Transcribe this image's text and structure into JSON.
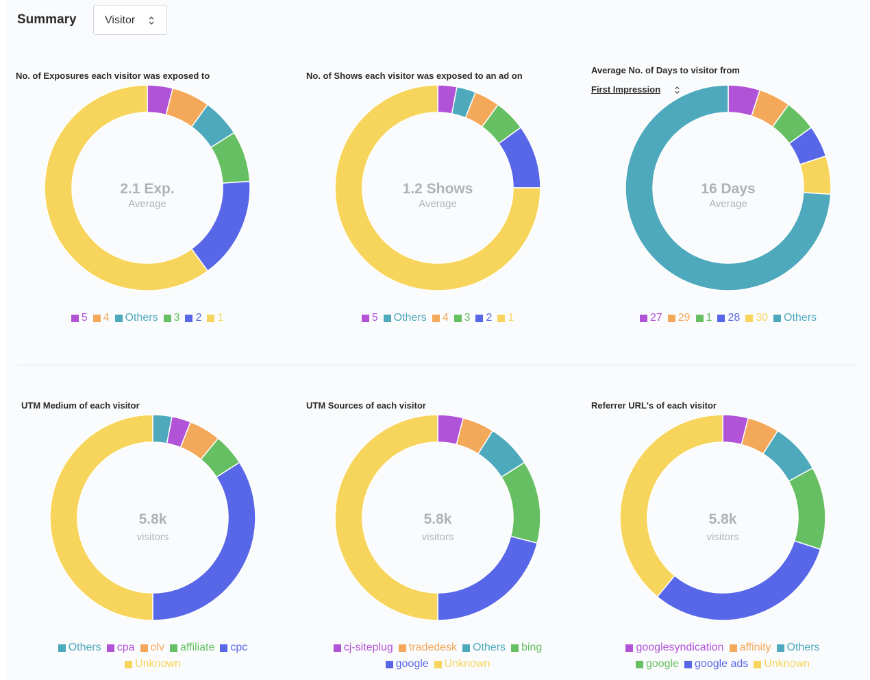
{
  "header": {
    "title": "Summary",
    "select": {
      "value": "Visitor"
    }
  },
  "cards": [
    {
      "title": "No. of Exposures each visitor was exposed to",
      "center_value": "2.1 Exp.",
      "center_sub": "Average"
    },
    {
      "title": "No. of Shows each visitor was exposed to an ad on",
      "center_value": "1.2 Shows",
      "center_sub": "Average"
    },
    {
      "title": "Average No. of Days to visitor from",
      "dropdown": "First Impression",
      "center_value": "16 Days",
      "center_sub": "Average"
    },
    {
      "title": "UTM Medium of each visitor",
      "center_value": "5.8k",
      "center_sub": "visitors"
    },
    {
      "title": "UTM Sources of each visitor",
      "center_value": "5.8k",
      "center_sub": "visitors"
    },
    {
      "title": "Referrer URL's of each visitor",
      "center_value": "5.8k",
      "center_sub": "visitors"
    }
  ],
  "colors": {
    "purple": "#b153d7",
    "orange": "#f3a85a",
    "teal": "#4ea9bc",
    "green": "#67bf63",
    "blue": "#5767e8",
    "yellow": "#f7d55c"
  },
  "chart_data": [
    {
      "type": "pie",
      "title": "No. of Exposures each visitor was exposed to",
      "categories": [
        "5",
        "4",
        "Others",
        "3",
        "2",
        "1"
      ],
      "values": [
        4,
        6,
        6,
        8,
        16,
        60
      ],
      "colors": [
        "#b153d7",
        "#f3a85a",
        "#4ea9bc",
        "#67bf63",
        "#5767e8",
        "#f7d55c"
      ],
      "legend": "bottom"
    },
    {
      "type": "pie",
      "title": "No. of Shows each visitor was exposed to an ad on",
      "categories": [
        "5",
        "Others",
        "4",
        "3",
        "2",
        "1"
      ],
      "values": [
        3,
        3,
        4,
        5,
        10,
        75
      ],
      "colors": [
        "#b153d7",
        "#4ea9bc",
        "#f3a85a",
        "#67bf63",
        "#5767e8",
        "#f7d55c"
      ],
      "legend": "bottom"
    },
    {
      "type": "pie",
      "title": "Average No. of Days to visitor from",
      "categories": [
        "27",
        "29",
        "1",
        "28",
        "30",
        "Others"
      ],
      "values": [
        5,
        5,
        5,
        5,
        6,
        74
      ],
      "colors": [
        "#b153d7",
        "#f3a85a",
        "#67bf63",
        "#5767e8",
        "#f7d55c",
        "#4ea9bc"
      ],
      "legend": "bottom"
    },
    {
      "type": "pie",
      "title": "UTM Medium of each visitor",
      "categories": [
        "Others",
        "cpa",
        "olv",
        "affiliate",
        "cpc",
        "Unknown"
      ],
      "values": [
        3,
        3,
        5,
        5,
        34,
        50
      ],
      "colors": [
        "#4ea9bc",
        "#b153d7",
        "#f3a85a",
        "#67bf63",
        "#5767e8",
        "#f7d55c"
      ],
      "legend": "bottom"
    },
    {
      "type": "pie",
      "title": "UTM Sources of each visitor",
      "categories": [
        "cj-siteplug",
        "tradedesk",
        "Others",
        "bing",
        "google",
        "Unknown"
      ],
      "values": [
        4,
        5,
        7,
        13,
        21,
        50
      ],
      "colors": [
        "#b153d7",
        "#f3a85a",
        "#4ea9bc",
        "#67bf63",
        "#5767e8",
        "#f7d55c"
      ],
      "legend": "bottom"
    },
    {
      "type": "pie",
      "title": "Referrer URL's of each visitor",
      "categories": [
        "googlesyndication",
        "affinity",
        "Others",
        "google",
        "google ads",
        "Unknown"
      ],
      "values": [
        4,
        5,
        8,
        13,
        31,
        39
      ],
      "colors": [
        "#b153d7",
        "#f3a85a",
        "#4ea9bc",
        "#67bf63",
        "#5767e8",
        "#f7d55c"
      ],
      "legend": "bottom"
    }
  ]
}
